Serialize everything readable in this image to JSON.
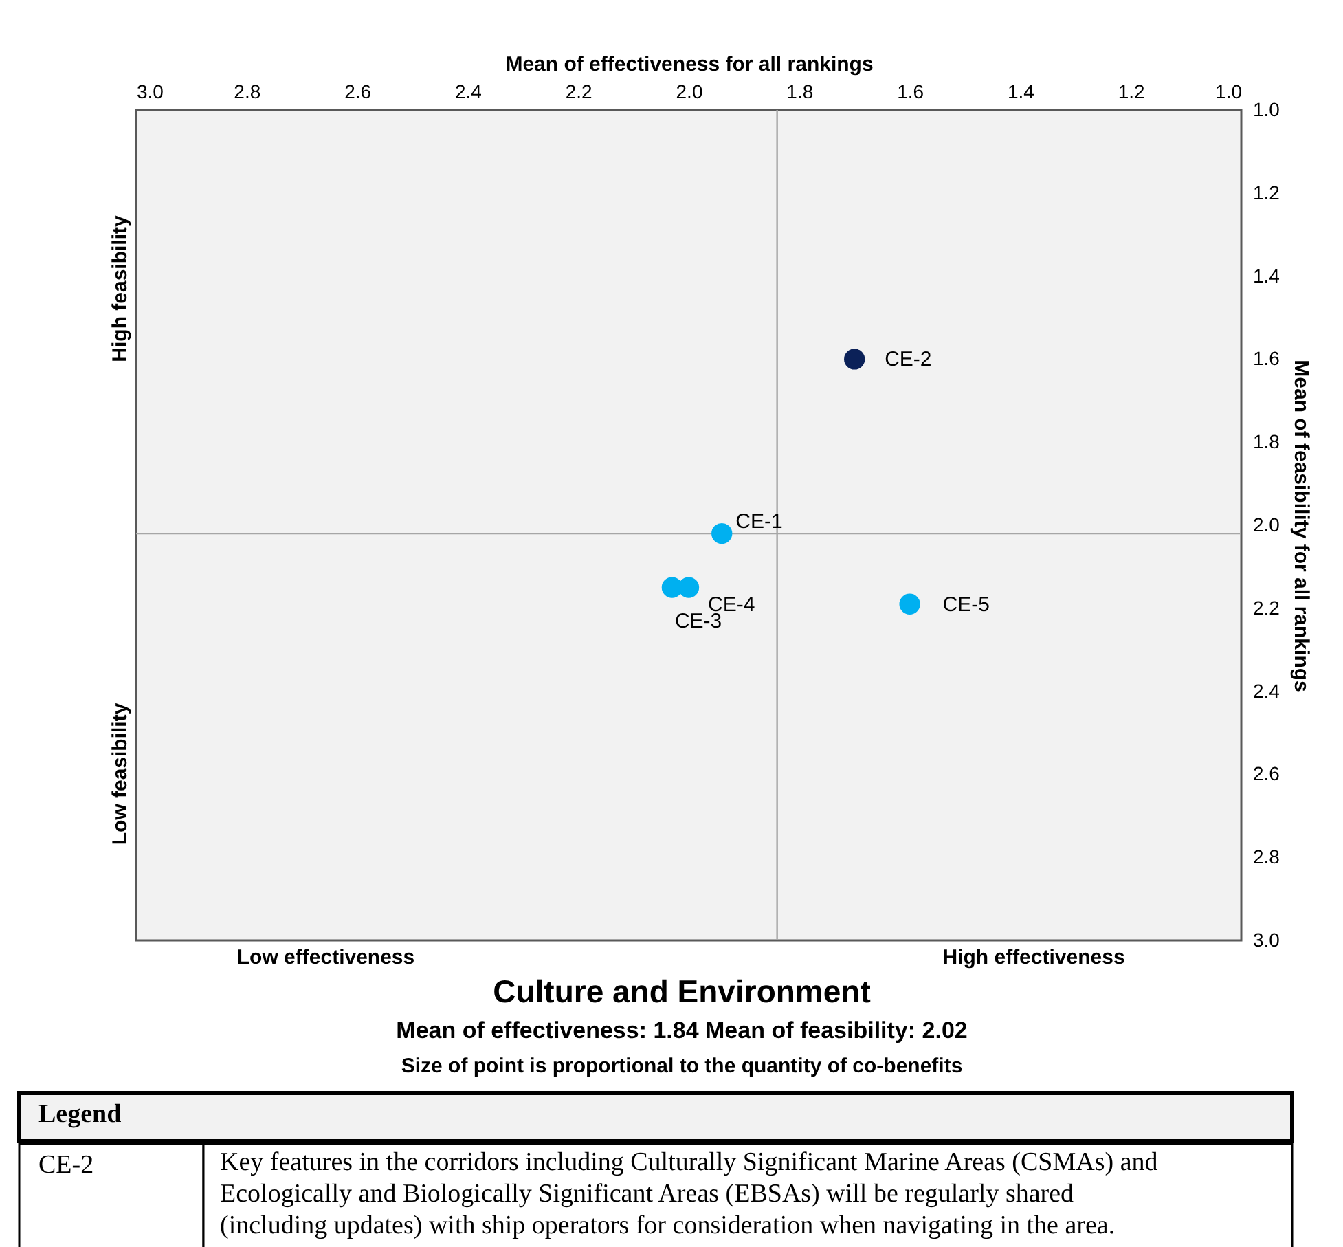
{
  "chart_data": {
    "type": "scatter",
    "title": "Culture and Environment",
    "subtitle": "Mean of effectiveness: 1.84    Mean of feasibility: 2.02",
    "xlabel": "Mean of effectiveness for all rankings",
    "ylabel": "Mean of feasibility for all rankings",
    "xlim": [
      3.0,
      1.0
    ],
    "xticks": [
      {
        "value": 3,
        "label": "3.0"
      },
      2.8,
      2.6,
      2.4,
      2.2,
      {
        "value": 2,
        "label": "2.0"
      },
      1.8,
      1.6,
      1.4,
      1.2,
      {
        "value": 1,
        "label": "1.0"
      }
    ],
    "ylim": [
      3.0,
      1.0
    ],
    "yticks": [
      {
        "value": 1,
        "label": "1.0"
      },
      1.2,
      1.4,
      1.6,
      1.8,
      {
        "value": 2,
        "label": "2.0"
      },
      2.2,
      2.4,
      2.6,
      2.8,
      {
        "value": 3,
        "label": "3.0"
      }
    ],
    "series": [
      {
        "name": "CE-1",
        "color": "#00b0f0",
        "x": [
          1.94
        ],
        "values": [
          2.02
        ]
      },
      {
        "name": "CE-2",
        "color": "#0b2158",
        "x": [
          1.7
        ],
        "values": [
          1.6
        ]
      },
      {
        "name": "CE-3",
        "color": "#00b0f0",
        "x": [
          2.03
        ],
        "values": [
          2.15
        ]
      },
      {
        "name": "CE-4",
        "color": "#00b0f0",
        "x": [
          2.0
        ],
        "values": [
          2.15
        ]
      },
      {
        "name": "CE-5",
        "color": "#00b0f0",
        "x": [
          1.6
        ],
        "values": [
          2.19
        ]
      }
    ],
    "ref_lines": [
      {
        "axis": "x",
        "value": 1.84,
        "color": "#a6a6a6"
      },
      {
        "axis": "y",
        "value": 2.02,
        "color": "#a6a6a6"
      }
    ],
    "annotations": [
      "High feasibility",
      "Low feasibility",
      "Low effectiveness",
      "High effectiveness",
      "Size of point is proportional to the quantity of co-benefits",
      "Legend",
      "CE-2",
      "Key features in the corridors including Culturally Significant Marine Areas (CSMAs) and Ecologically and Biologically Significant Areas (EBSAs) will be regularly shared (including updates) with ship operators for consideration when navigating in the area."
    ],
    "grid": false,
    "legend": false,
    "marker": "circle"
  }
}
